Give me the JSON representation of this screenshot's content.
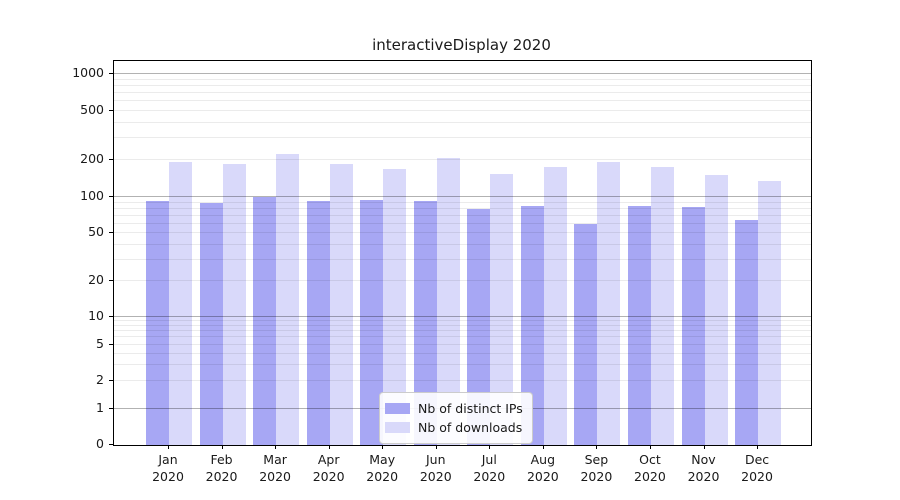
{
  "chart_data": {
    "type": "bar",
    "title": "interactiveDisplay 2020",
    "categories": [
      "Jan",
      "Feb",
      "Mar",
      "Apr",
      "May",
      "Jun",
      "Jul",
      "Aug",
      "Sep",
      "Oct",
      "Nov",
      "Dec"
    ],
    "category_year": "2020",
    "series": [
      {
        "name": "Nb of distinct IPs",
        "color": "#a7a7f4",
        "values": [
          92,
          89,
          101,
          93,
          95,
          92,
          79,
          85,
          60,
          85,
          82,
          64
        ]
      },
      {
        "name": "Nb of downloads",
        "color": "#d9d9fa",
        "values": [
          192,
          185,
          222,
          184,
          170,
          207,
          154,
          174,
          194,
          174,
          151,
          136
        ]
      }
    ],
    "yscale": "symlog",
    "yticks": [
      0,
      1,
      2,
      5,
      10,
      20,
      50,
      100,
      200,
      500,
      1000
    ],
    "ylim": [
      0,
      1300
    ],
    "grid": true,
    "legend_position": "lower center inside",
    "colors": {
      "axis": "#000000",
      "text": "#1a1a1a",
      "major_grid": "#b0b0b0",
      "minor_grid": "#e9e9e9",
      "background": "#ffffff"
    }
  }
}
